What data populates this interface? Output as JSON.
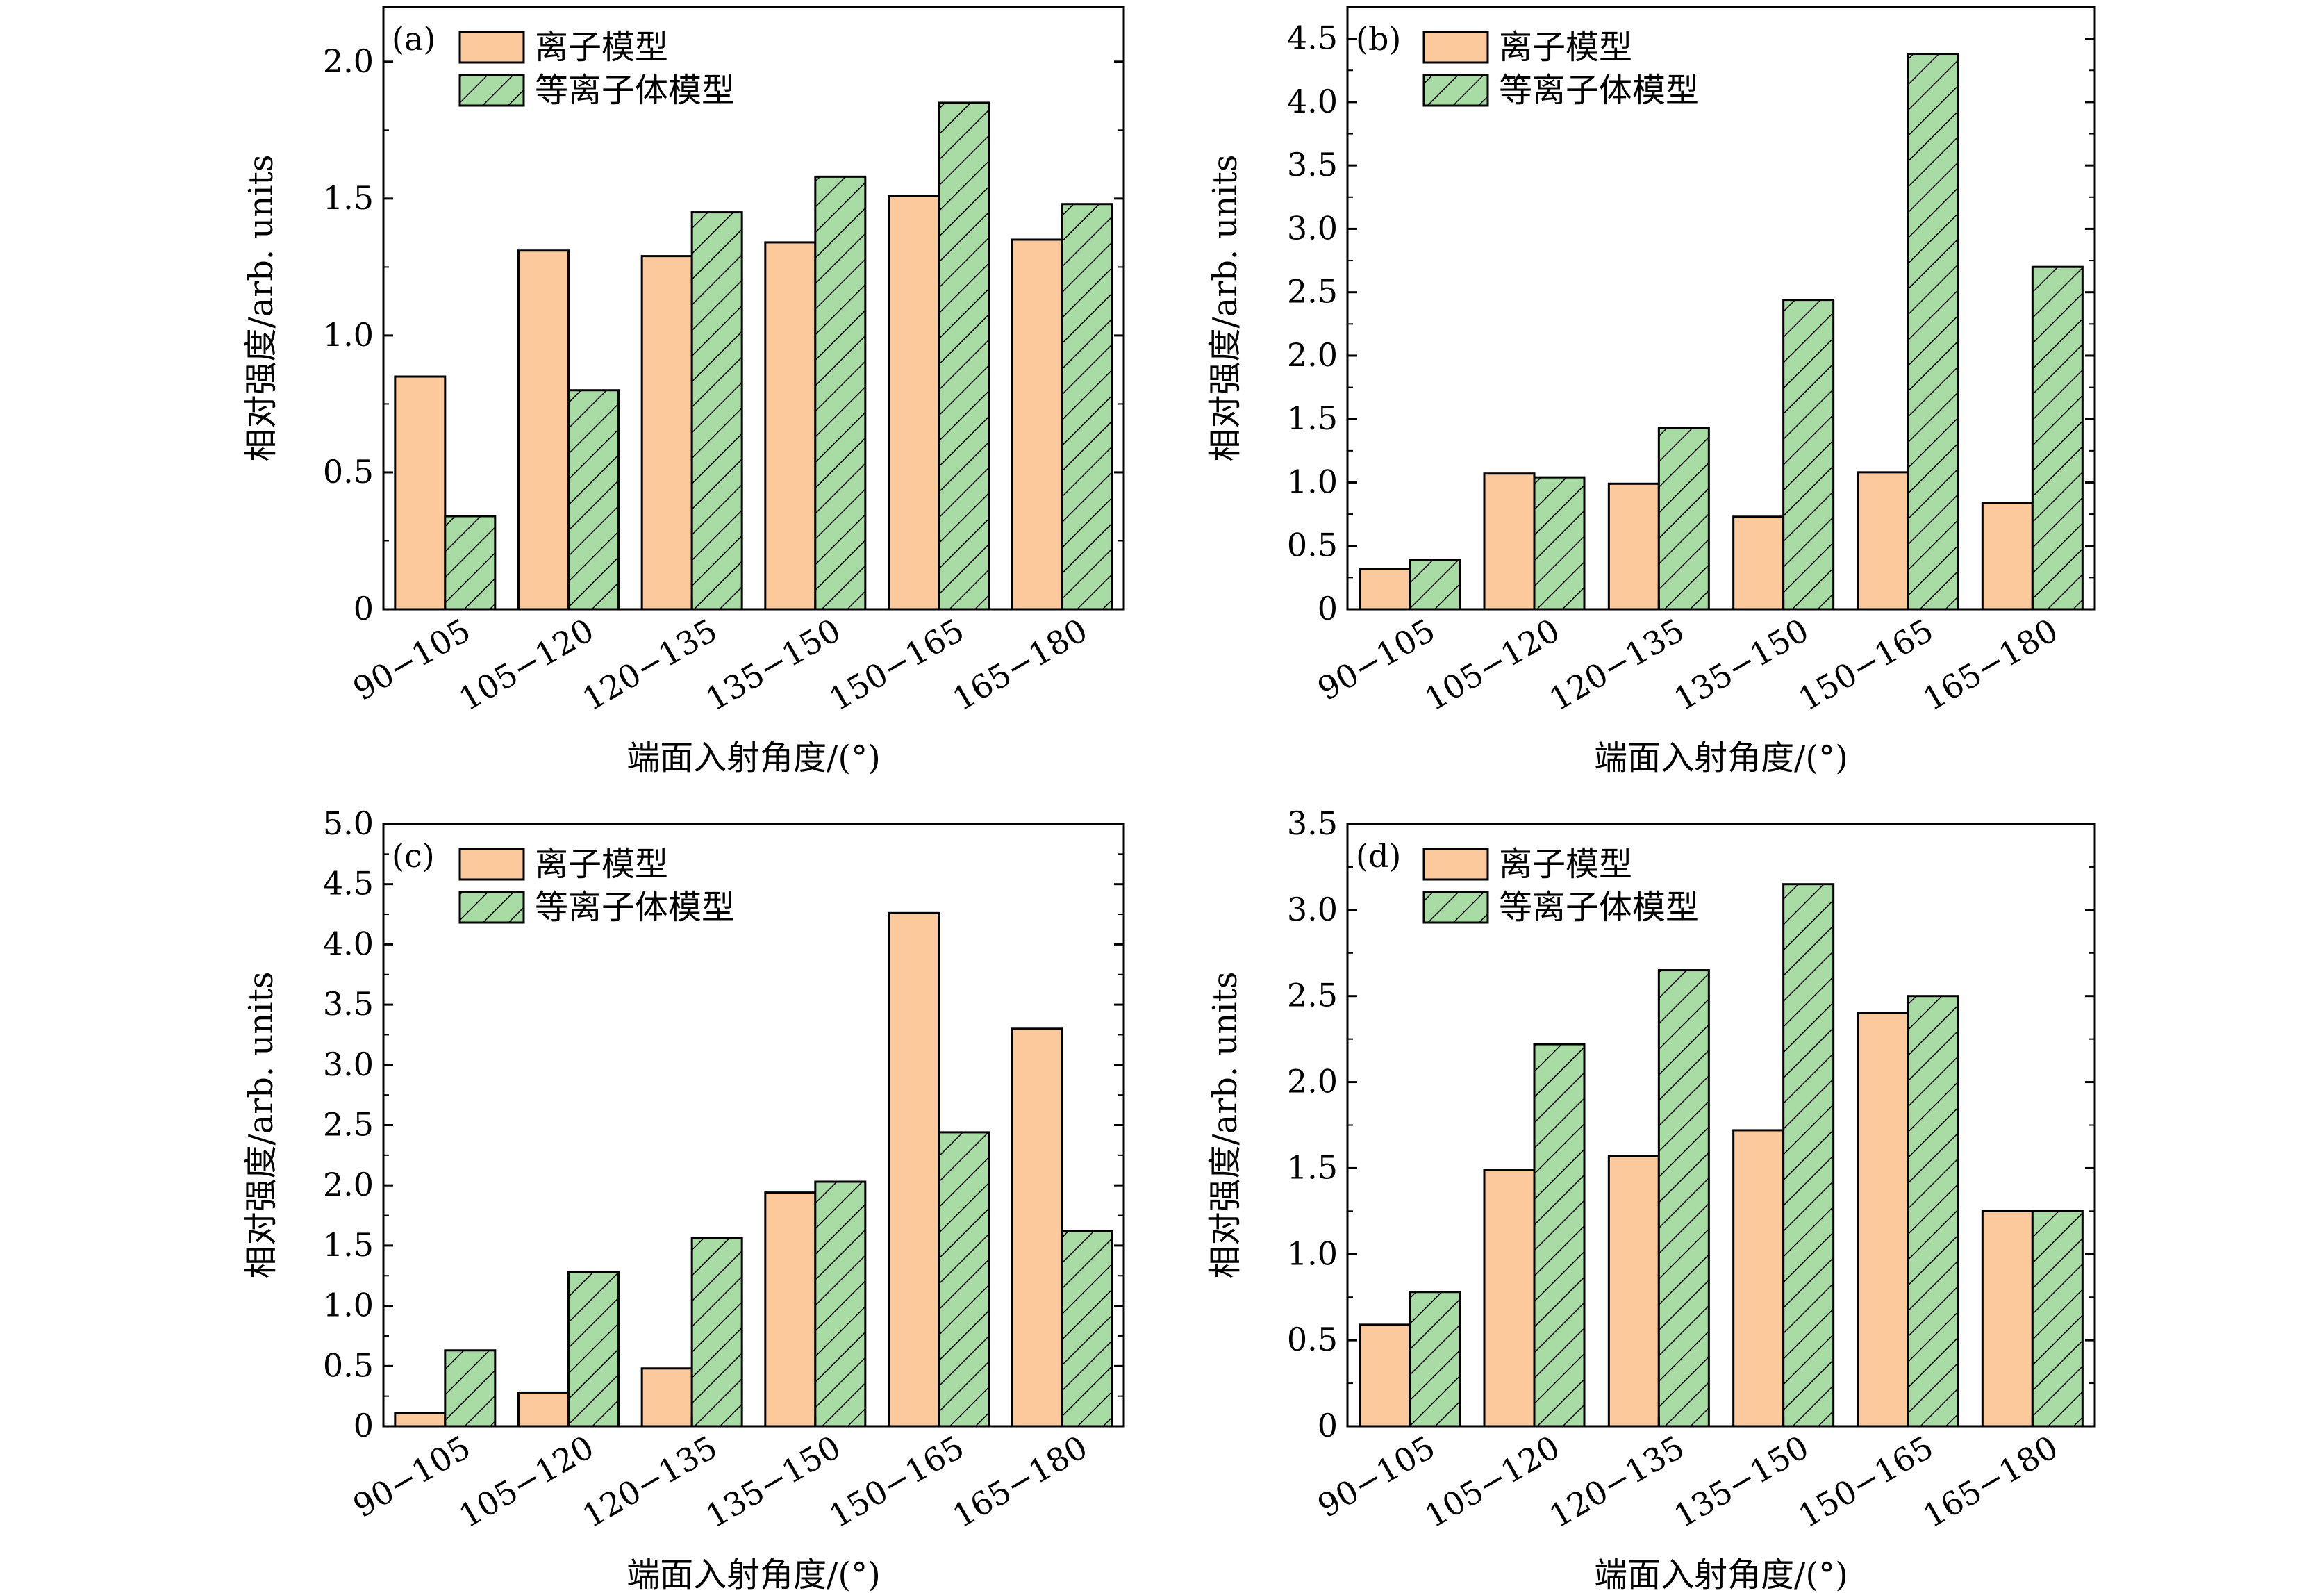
{
  "colors": {
    "ionic": "#fbc99c",
    "plasma": "#a9dba4",
    "outline": "#000000",
    "hatch": "#000000"
  },
  "legend": {
    "ionic": "离子模型",
    "plasma": "等离子体模型"
  },
  "chart_data": [
    {
      "type": "bar",
      "panel": "(a)",
      "categories": [
        "90−105",
        "105−120",
        "120−135",
        "135−150",
        "150−165",
        "165−180"
      ],
      "series": [
        {
          "name": "离子模型",
          "values": [
            0.85,
            1.31,
            1.29,
            1.34,
            1.51,
            1.35
          ]
        },
        {
          "name": "等离子体模型",
          "values": [
            0.34,
            0.8,
            1.45,
            1.58,
            1.85,
            1.48
          ]
        }
      ],
      "xlabel": "端面入射角度/(°)",
      "ylabel": "相对强度/arb. units",
      "ylim": [
        0,
        2.2
      ],
      "yticks": [
        0,
        0.5,
        1.0,
        1.5,
        2.0
      ],
      "ytick_labels": [
        "0",
        "0.5",
        "1.0",
        "1.5",
        "2.0"
      ],
      "grid": false,
      "legend_position": "top-left"
    },
    {
      "type": "bar",
      "panel": "(b)",
      "categories": [
        "90−105",
        "105−120",
        "120−135",
        "135−150",
        "150−165",
        "165−180"
      ],
      "series": [
        {
          "name": "离子模型",
          "values": [
            0.32,
            1.07,
            0.99,
            0.73,
            1.08,
            0.84
          ]
        },
        {
          "name": "等离子体模型",
          "values": [
            0.39,
            1.04,
            1.43,
            2.44,
            4.38,
            2.7
          ]
        }
      ],
      "xlabel": "端面入射角度/(°)",
      "ylabel": "相对强度/arb. units",
      "ylim": [
        0,
        4.75
      ],
      "yticks": [
        0,
        0.5,
        1.0,
        1.5,
        2.0,
        2.5,
        3.0,
        3.5,
        4.0,
        4.5
      ],
      "ytick_labels": [
        "0",
        "0.5",
        "1.0",
        "1.5",
        "2.0",
        "2.5",
        "3.0",
        "3.5",
        "4.0",
        "4.5"
      ],
      "grid": false,
      "legend_position": "top-left"
    },
    {
      "type": "bar",
      "panel": "(c)",
      "categories": [
        "90−105",
        "105−120",
        "120−135",
        "135−150",
        "150−165",
        "165−180"
      ],
      "series": [
        {
          "name": "离子模型",
          "values": [
            0.11,
            0.28,
            0.48,
            1.94,
            4.26,
            3.3
          ]
        },
        {
          "name": "等离子体模型",
          "values": [
            0.63,
            1.28,
            1.56,
            2.03,
            2.44,
            1.62
          ]
        }
      ],
      "xlabel": "端面入射角度/(°)",
      "ylabel": "相对强度/arb. units",
      "ylim": [
        0,
        5.0
      ],
      "yticks": [
        0,
        0.5,
        1.0,
        1.5,
        2.0,
        2.5,
        3.0,
        3.5,
        4.0,
        4.5,
        5.0
      ],
      "ytick_labels": [
        "0",
        "0.5",
        "1.0",
        "1.5",
        "2.0",
        "2.5",
        "3.0",
        "3.5",
        "4.0",
        "4.5",
        "5.0"
      ],
      "grid": false,
      "legend_position": "top-left"
    },
    {
      "type": "bar",
      "panel": "(d)",
      "categories": [
        "90−105",
        "105−120",
        "120−135",
        "135−150",
        "150−165",
        "165−180"
      ],
      "series": [
        {
          "name": "离子模型",
          "values": [
            0.59,
            1.49,
            1.57,
            1.72,
            2.4,
            1.25
          ]
        },
        {
          "name": "等离子体模型",
          "values": [
            0.78,
            2.22,
            2.65,
            3.15,
            2.5,
            1.25
          ]
        }
      ],
      "xlabel": "端面入射角度/(°)",
      "ylabel": "相对强度/arb. units",
      "ylim": [
        0,
        3.5
      ],
      "yticks": [
        0,
        0.5,
        1.0,
        1.5,
        2.0,
        2.5,
        3.0,
        3.5
      ],
      "ytick_labels": [
        "0",
        "0.5",
        "1.0",
        "1.5",
        "2.0",
        "2.5",
        "3.0",
        "3.5"
      ],
      "grid": false,
      "legend_position": "top-left"
    }
  ]
}
